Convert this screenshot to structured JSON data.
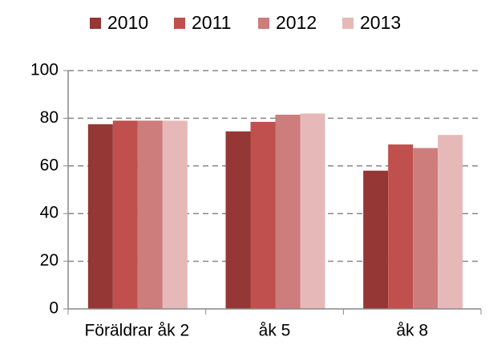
{
  "chart_data": {
    "type": "bar",
    "categories": [
      "Föräldrar åk 2",
      "åk 5",
      "åk 8"
    ],
    "series": [
      {
        "name": "2010",
        "color": "#953735",
        "values": [
          77.5,
          74.5,
          58
        ]
      },
      {
        "name": "2011",
        "color": "#c0504d",
        "values": [
          79,
          78.5,
          69
        ]
      },
      {
        "name": "2012",
        "color": "#cd7d7b",
        "values": [
          79,
          81.5,
          67.5
        ]
      },
      {
        "name": "2013",
        "color": "#e6b9b8",
        "values": [
          79,
          82,
          73
        ]
      }
    ],
    "ylim": [
      0,
      100
    ],
    "yticks": [
      0,
      20,
      40,
      60,
      80,
      100
    ],
    "grid": true,
    "legend": "top"
  }
}
